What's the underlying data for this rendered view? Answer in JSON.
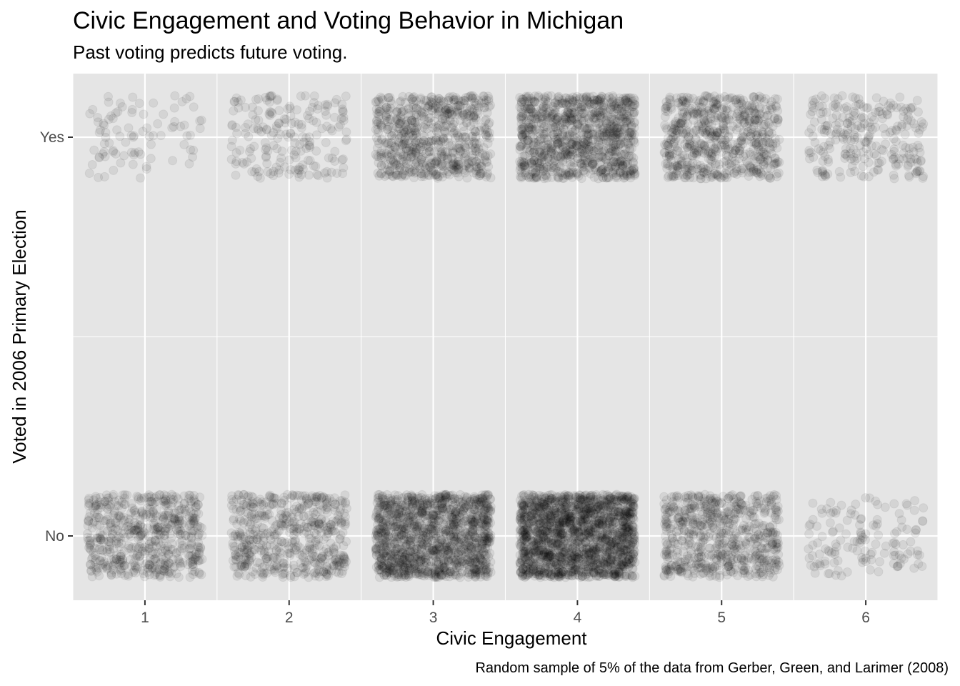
{
  "chart_data": {
    "type": "scatter",
    "title": "Civic Engagement and Voting Behavior in Michigan",
    "subtitle": "Past voting predicts future voting.",
    "caption": "Random sample of 5% of the data from Gerber, Green, and Larimer (2008)",
    "xlabel": "Civic Engagement",
    "ylabel": "Voted in 2006 Primary Election",
    "x_ticks": [
      "1",
      "2",
      "3",
      "4",
      "5",
      "6"
    ],
    "y_ticks": [
      "No",
      "Yes"
    ],
    "x_range": [
      0.5,
      6.5
    ],
    "grid": true,
    "jitter": true,
    "point_color": "#000000",
    "point_alpha": 0.07,
    "panel_background": "#e5e5e5",
    "grid_color": "#ffffff",
    "point_counts": [
      {
        "x": 1,
        "voted": "No",
        "n": 600
      },
      {
        "x": 2,
        "voted": "No",
        "n": 550
      },
      {
        "x": 3,
        "voted": "No",
        "n": 1300
      },
      {
        "x": 4,
        "voted": "No",
        "n": 1700
      },
      {
        "x": 5,
        "voted": "No",
        "n": 650
      },
      {
        "x": 6,
        "voted": "No",
        "n": 140
      },
      {
        "x": 1,
        "voted": "Yes",
        "n": 90
      },
      {
        "x": 2,
        "voted": "Yes",
        "n": 200
      },
      {
        "x": 3,
        "voted": "Yes",
        "n": 700
      },
      {
        "x": 4,
        "voted": "Yes",
        "n": 1000
      },
      {
        "x": 5,
        "voted": "Yes",
        "n": 650
      },
      {
        "x": 6,
        "voted": "Yes",
        "n": 260
      }
    ]
  }
}
